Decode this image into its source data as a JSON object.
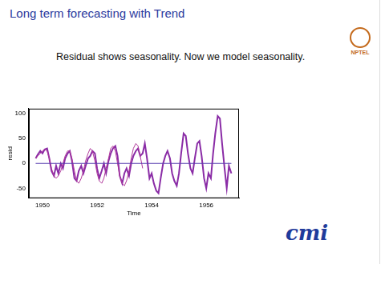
{
  "slide": {
    "title": "Long term forecasting with Trend",
    "text": "Residual shows seasonality. Now we model seasonality.",
    "logos": [
      "NPTEL",
      "cmi"
    ]
  },
  "chart_data": {
    "type": "line",
    "x_label": "Time",
    "y_label": "resid",
    "x": [
      1949.75,
      1949.83,
      1949.92,
      1950.0,
      1950.08,
      1950.17,
      1950.25,
      1950.33,
      1950.42,
      1950.5,
      1950.58,
      1950.67,
      1950.75,
      1950.83,
      1950.92,
      1951.0,
      1951.08,
      1951.17,
      1951.25,
      1951.33,
      1951.42,
      1951.5,
      1951.58,
      1951.67,
      1951.75,
      1951.83,
      1951.92,
      1952.0,
      1952.08,
      1952.17,
      1952.25,
      1952.33,
      1952.42,
      1952.5,
      1952.58,
      1952.67,
      1952.75,
      1952.83,
      1952.92,
      1953.0,
      1953.08,
      1953.17,
      1953.25,
      1953.33,
      1953.42,
      1953.5,
      1953.58,
      1953.67,
      1953.75,
      1953.83,
      1953.92,
      1954.0,
      1954.08,
      1954.17,
      1954.25,
      1954.33,
      1954.42,
      1954.5,
      1954.58,
      1954.67,
      1954.75,
      1954.83,
      1954.92,
      1955.0,
      1955.08,
      1955.17,
      1955.25,
      1955.33,
      1955.42,
      1955.5,
      1955.58,
      1955.67,
      1955.75,
      1955.83,
      1955.92,
      1956.0,
      1956.08,
      1956.17,
      1956.25,
      1956.33,
      1956.42,
      1956.5,
      1956.58,
      1956.67,
      1956.75,
      1956.83,
      1956.92
    ],
    "series": [
      {
        "color": "#5a3fb0",
        "line_style": "solid",
        "values": [
          0,
          0,
          0,
          0,
          0,
          0,
          0,
          0,
          0,
          0,
          0,
          0,
          0,
          0,
          0,
          0,
          0,
          0,
          0,
          0,
          0,
          0,
          0,
          0,
          0,
          0,
          0,
          0,
          0,
          0,
          0,
          0,
          0,
          0,
          0,
          0,
          0,
          0,
          0,
          0,
          0,
          0,
          0,
          0,
          0,
          0,
          0,
          0,
          0,
          0,
          0,
          0,
          0,
          0,
          0,
          0,
          0,
          0,
          0,
          0,
          0,
          0,
          0,
          0,
          0,
          0,
          0,
          0,
          0,
          0,
          0,
          0,
          0,
          0,
          0,
          0,
          0,
          0,
          0,
          0,
          0,
          0,
          0,
          0,
          0,
          0,
          0
        ]
      },
      {
        "color": "#b0389a",
        "line_style": "solid",
        "values": [
          10,
          15,
          20,
          25,
          28,
          25,
          10,
          -10,
          -25,
          -30,
          -25,
          -15,
          0,
          15,
          25,
          25,
          10,
          -15,
          -35,
          -40,
          -30,
          -15,
          5,
          20,
          30,
          25,
          5,
          -20,
          -35,
          -40,
          -30,
          -10,
          10,
          30,
          35,
          25,
          0,
          -25,
          -40,
          -45,
          -35,
          -15,
          10,
          30,
          40,
          35,
          15,
          -10,
          null,
          null,
          null,
          null,
          null,
          null,
          null,
          null,
          null,
          null,
          null,
          null,
          null,
          null,
          null,
          null,
          null,
          null,
          null,
          null,
          null,
          null,
          null,
          null,
          null,
          null,
          null,
          null,
          null,
          null,
          null,
          null,
          null,
          null,
          null,
          null,
          null,
          null,
          null
        ]
      },
      {
        "color": "#8a2ca6",
        "line_style": "solid",
        "values": [
          10,
          18,
          25,
          20,
          28,
          30,
          10,
          -15,
          -25,
          -5,
          -20,
          0,
          -10,
          10,
          20,
          25,
          5,
          -30,
          -35,
          -15,
          -5,
          -20,
          -5,
          10,
          15,
          25,
          20,
          -10,
          -30,
          -15,
          0,
          -20,
          5,
          20,
          30,
          35,
          15,
          -25,
          -40,
          -20,
          -10,
          -25,
          0,
          15,
          25,
          30,
          15,
          20,
          40,
          10,
          -30,
          -20,
          -40,
          -55,
          -60,
          -30,
          0,
          15,
          25,
          10,
          -20,
          -35,
          -45,
          -20,
          20,
          60,
          55,
          20,
          -10,
          -20,
          10,
          40,
          45,
          15,
          -30,
          -50,
          -20,
          -30,
          20,
          60,
          95,
          90,
          40,
          -10,
          -50,
          -5,
          -20
        ]
      }
    ],
    "xlim": [
      1949.5,
      1957.2
    ],
    "xticks": [
      1950,
      1952,
      1954,
      1956
    ],
    "ylim": [
      -70,
      110
    ],
    "yticks": [
      -50,
      0,
      50,
      100
    ],
    "grid": false
  }
}
